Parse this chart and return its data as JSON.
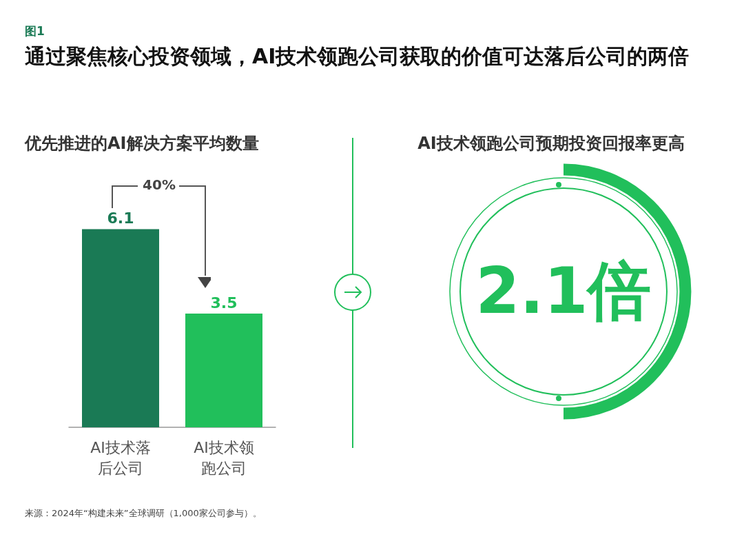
{
  "chart_data": [
    {
      "type": "bar",
      "title": "优先推进的AI解决方案平均数量",
      "categories": [
        "AI技术落后公司",
        "AI技术领跑公司"
      ],
      "values": [
        6.1,
        3.5
      ],
      "colors": [
        "#1a7a55",
        "#21bf5b"
      ],
      "data_labels": true,
      "annotations": [
        "图1",
        "通过聚焦核心投资领域，AI技术领跑公司获取的价值可达落后公司的两倍",
        "40%",
        "来源：2024年“构建未来”全球调研（1,000家公司参与）。"
      ]
    },
    {
      "type": "other",
      "title": "AI技术领跑公司预期投资回报率更高",
      "annotations": [
        "2.1倍"
      ]
    }
  ]
}
